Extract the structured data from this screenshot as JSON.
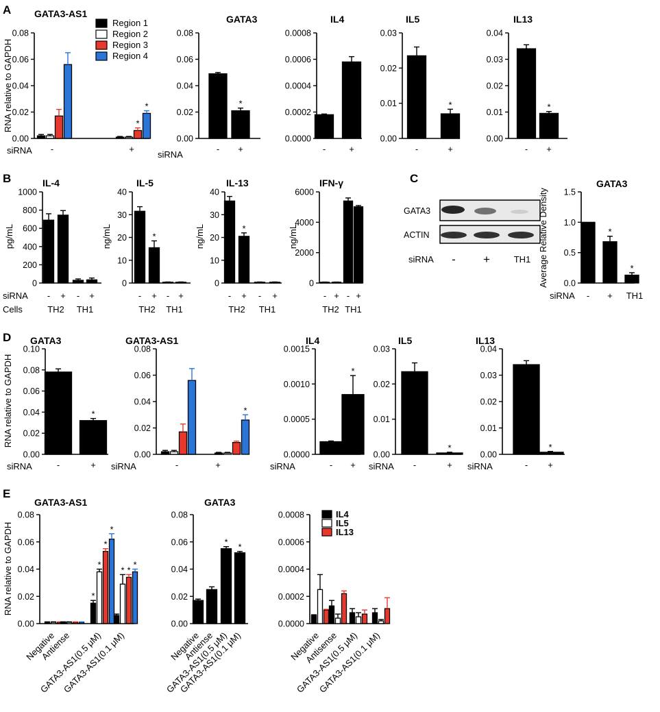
{
  "figure_labels": [
    "A",
    "B",
    "C",
    "D",
    "E"
  ],
  "colors": {
    "black": "#000000",
    "white": "#ffffff",
    "red": "#e8382d",
    "blue": "#2a75d8",
    "gray": "#8a8a8a"
  },
  "chart_data": [
    {
      "id": "A1",
      "panel": "A",
      "type": "bar",
      "title": "GATA3-AS1",
      "ylabel": "RNA relative to GAPDH",
      "ylim": [
        0,
        0.08
      ],
      "yticks": [
        "0.00",
        "0.02",
        "0.04",
        "0.06",
        "0.08"
      ],
      "group_row_label": "siRNA",
      "groups": [
        "-",
        "+"
      ],
      "legend": [
        "Region 1",
        "Region 2",
        "Region 3",
        "Region 4"
      ],
      "series": [
        {
          "name": "Region 1",
          "color": "#000000",
          "values": [
            0.002,
            0.001
          ],
          "errors": [
            0.001,
            0.0005
          ],
          "sig": [
            false,
            false
          ]
        },
        {
          "name": "Region 2",
          "color": "#ffffff",
          "values": [
            0.002,
            0.001
          ],
          "errors": [
            0.001,
            0.0005
          ],
          "sig": [
            false,
            false
          ]
        },
        {
          "name": "Region 3",
          "color": "#e8382d",
          "values": [
            0.017,
            0.006
          ],
          "errors": [
            0.005,
            0.002
          ],
          "sig": [
            false,
            true
          ]
        },
        {
          "name": "Region 4",
          "color": "#2a75d8",
          "values": [
            0.056,
            0.019
          ],
          "errors": [
            0.009,
            0.002
          ],
          "sig": [
            false,
            true
          ]
        }
      ]
    },
    {
      "id": "A2",
      "panel": "A",
      "type": "bar",
      "title": "GATA3",
      "ylim": [
        0,
        0.08
      ],
      "yticks": [
        "0.00",
        "0.02",
        "0.04",
        "0.06",
        "0.08"
      ],
      "group_row_label": "siRNA",
      "categories": [
        "-",
        "+"
      ],
      "values": [
        0.049,
        0.021
      ],
      "errors": [
        0.001,
        0.002
      ],
      "sig": [
        false,
        true
      ]
    },
    {
      "id": "A3",
      "panel": "A",
      "type": "bar",
      "title": "IL4",
      "ylim": [
        0,
        0.0008
      ],
      "yticks": [
        "0.0000",
        "0.0002",
        "0.0004",
        "0.0006",
        "0.0008"
      ],
      "categories": [
        "-",
        "+"
      ],
      "values": [
        0.00018,
        0.00058
      ],
      "errors": [
        5e-06,
        4e-05
      ],
      "sig": [
        false,
        false
      ]
    },
    {
      "id": "A4",
      "panel": "A",
      "type": "bar",
      "title": "IL5",
      "ylim": [
        0,
        0.03
      ],
      "yticks": [
        "0.00",
        "0.01",
        "0.02",
        "0.03"
      ],
      "categories": [
        "-",
        "+"
      ],
      "values": [
        0.0235,
        0.007
      ],
      "errors": [
        0.0025,
        0.0013
      ],
      "sig": [
        false,
        true
      ]
    },
    {
      "id": "A5",
      "panel": "A",
      "type": "bar",
      "title": "IL13",
      "ylim": [
        0,
        0.04
      ],
      "yticks": [
        "0.00",
        "0.01",
        "0.02",
        "0.03",
        "0.04"
      ],
      "categories": [
        "-",
        "+"
      ],
      "values": [
        0.034,
        0.0095
      ],
      "errors": [
        0.0015,
        0.0007
      ],
      "sig": [
        false,
        true
      ]
    },
    {
      "id": "B1",
      "panel": "B",
      "type": "bar",
      "title": "IL-4",
      "ylabel": "pg/mL",
      "ylim": [
        0,
        1000
      ],
      "yticks": [
        "0",
        "200",
        "400",
        "600",
        "800",
        "1000"
      ],
      "group_row_label": "siRNA",
      "categories": [
        "-",
        "+",
        "-",
        "+"
      ],
      "cells_label": "Cells",
      "cells": [
        "TH2",
        "TH1"
      ],
      "values": [
        690,
        745,
        30,
        35
      ],
      "errors": [
        70,
        50,
        15,
        20
      ],
      "sig": [
        false,
        false,
        false,
        false
      ]
    },
    {
      "id": "B2",
      "panel": "B",
      "type": "bar",
      "title": "IL-5",
      "ylabel": "ng/mL",
      "ylim": [
        0,
        40
      ],
      "yticks": [
        "0",
        "10",
        "20",
        "30",
        "40"
      ],
      "categories": [
        "-",
        "+",
        "-",
        "+"
      ],
      "cells": [
        "TH2",
        "TH1"
      ],
      "values": [
        31.5,
        15.5,
        0.3,
        0.3
      ],
      "errors": [
        2,
        3,
        0.1,
        0.1
      ],
      "sig": [
        false,
        true,
        false,
        false
      ]
    },
    {
      "id": "B3",
      "panel": "B",
      "type": "bar",
      "title": "IL-13",
      "ylabel": "ng/mL",
      "ylim": [
        0,
        40
      ],
      "yticks": [
        "0",
        "10",
        "20",
        "30",
        "40"
      ],
      "categories": [
        "-",
        "+",
        "-",
        "+"
      ],
      "cells": [
        "TH2",
        "TH1"
      ],
      "values": [
        36,
        20.5,
        0.3,
        0.3
      ],
      "errors": [
        2,
        1.5,
        0.1,
        0.1
      ],
      "sig": [
        false,
        true,
        false,
        false
      ]
    },
    {
      "id": "B4",
      "panel": "B",
      "type": "bar",
      "title": "IFN-γ",
      "ylabel": "ng/mL",
      "ylim": [
        0,
        6000
      ],
      "yticks": [
        "0",
        "2000",
        "4000",
        "6000"
      ],
      "categories": [
        "-",
        "+",
        "-",
        "+"
      ],
      "cells": [
        "TH2",
        "TH1"
      ],
      "values": [
        30,
        30,
        5400,
        5020
      ],
      "errors": [
        10,
        10,
        200,
        80
      ],
      "sig": [
        false,
        false,
        false,
        false
      ]
    },
    {
      "id": "C_blot",
      "panel": "C",
      "type": "image",
      "title": "Western blot",
      "rows": [
        "GATA3",
        "ACTIN"
      ],
      "group_row_label": "siRNA",
      "lanes": [
        "-",
        "+",
        "TH1"
      ],
      "band_intensity": {
        "GATA3": [
          0.9,
          0.6,
          0.1
        ],
        "ACTIN": [
          0.85,
          0.85,
          0.85
        ]
      }
    },
    {
      "id": "C_bar",
      "panel": "C",
      "type": "bar",
      "title": "GATA3",
      "ylabel": "Average Relative Density",
      "ylim": [
        0,
        1.5
      ],
      "yticks": [
        "0.0",
        "0.5",
        "1.0",
        "1.5"
      ],
      "group_row_label": "siRNA",
      "categories": [
        "-",
        "+",
        "TH1"
      ],
      "values": [
        1.0,
        0.68,
        0.13
      ],
      "errors": [
        0,
        0.09,
        0.04
      ],
      "sig": [
        false,
        true,
        true
      ]
    },
    {
      "id": "D1",
      "panel": "D",
      "type": "bar",
      "title": "GATA3",
      "ylabel": "RNA relative to GAPDH",
      "ylim": [
        0,
        0.1
      ],
      "yticks": [
        "0.00",
        "0.02",
        "0.04",
        "0.06",
        "0.08",
        "0.10"
      ],
      "group_row_label": "siRNA",
      "categories": [
        "-",
        "+"
      ],
      "values": [
        0.078,
        0.032
      ],
      "errors": [
        0.003,
        0.002
      ],
      "sig": [
        false,
        true
      ]
    },
    {
      "id": "D2",
      "panel": "D",
      "type": "bar",
      "title": "GATA3-AS1",
      "ylim": [
        0,
        0.08
      ],
      "yticks": [
        "0.00",
        "0.02",
        "0.04",
        "0.06",
        "0.08"
      ],
      "group_row_label": "siRNA",
      "groups": [
        "-",
        "+"
      ],
      "series": [
        {
          "name": "Region 1",
          "color": "#000000",
          "values": [
            0.002,
            0.001
          ],
          "errors": [
            0.001,
            0.0005
          ],
          "sig": [
            false,
            false
          ]
        },
        {
          "name": "Region 2",
          "color": "#ffffff",
          "values": [
            0.002,
            0.001
          ],
          "errors": [
            0.001,
            0.0005
          ],
          "sig": [
            false,
            false
          ]
        },
        {
          "name": "Region 3",
          "color": "#e8382d",
          "values": [
            0.017,
            0.009
          ],
          "errors": [
            0.006,
            0.001
          ],
          "sig": [
            false,
            false
          ]
        },
        {
          "name": "Region 4",
          "color": "#2a75d8",
          "values": [
            0.056,
            0.026
          ],
          "errors": [
            0.009,
            0.004
          ],
          "sig": [
            false,
            true
          ]
        }
      ]
    },
    {
      "id": "D3",
      "panel": "D",
      "type": "bar",
      "title": "IL4",
      "ylim": [
        0,
        0.0015
      ],
      "yticks": [
        "0.0000",
        "0.0005",
        "0.0010",
        "0.0015"
      ],
      "group_row_label": "siRNA",
      "categories": [
        "-",
        "+"
      ],
      "values": [
        0.00018,
        0.00085
      ],
      "errors": [
        1e-05,
        0.00027
      ],
      "sig": [
        false,
        true
      ]
    },
    {
      "id": "D4",
      "panel": "D",
      "type": "bar",
      "title": "IL5",
      "ylim": [
        0,
        0.03
      ],
      "yticks": [
        "0.00",
        "0.01",
        "0.02",
        "0.03"
      ],
      "group_row_label": "siRNA",
      "categories": [
        "-",
        "+"
      ],
      "values": [
        0.0235,
        0.0004
      ],
      "errors": [
        0.0025,
        0.0002
      ],
      "sig": [
        false,
        true
      ]
    },
    {
      "id": "D5",
      "panel": "D",
      "type": "bar",
      "title": "IL13",
      "ylim": [
        0,
        0.04
      ],
      "yticks": [
        "0.00",
        "0.01",
        "0.02",
        "0.03",
        "0.04"
      ],
      "group_row_label": "siRNA",
      "categories": [
        "-",
        "+"
      ],
      "values": [
        0.034,
        0.0008
      ],
      "errors": [
        0.0015,
        0.0003
      ],
      "sig": [
        false,
        true
      ]
    },
    {
      "id": "E1",
      "panel": "E",
      "type": "bar",
      "title": "GATA3-AS1",
      "ylabel": "RNA relative to GAPDH",
      "ylim": [
        0,
        0.08
      ],
      "yticks": [
        "0.00",
        "0.02",
        "0.04",
        "0.06",
        "0.08"
      ],
      "groups": [
        "Negative",
        "Antiense",
        "GATA3-AS1(0.5 μM)",
        "GATA3-AS1(0.1 μM)"
      ],
      "series": [
        {
          "name": "Region 1",
          "color": "#000000",
          "values": [
            0.001,
            0.001,
            0.015,
            0.006
          ],
          "errors": [
            0.0003,
            0.0003,
            0.002,
            0.001
          ],
          "sig": [
            false,
            false,
            true,
            false
          ]
        },
        {
          "name": "Region 2",
          "color": "#ffffff",
          "values": [
            0.001,
            0.001,
            0.038,
            0.029
          ],
          "errors": [
            0.0003,
            0.0003,
            0.002,
            0.007
          ],
          "sig": [
            false,
            false,
            true,
            true
          ]
        },
        {
          "name": "Region 3",
          "color": "#e8382d",
          "values": [
            0.001,
            0.001,
            0.053,
            0.034
          ],
          "errors": [
            0.0003,
            0.0003,
            0.002,
            0.002
          ],
          "sig": [
            false,
            false,
            true,
            true
          ]
        },
        {
          "name": "Region 4",
          "color": "#2a75d8",
          "values": [
            0.001,
            0.001,
            0.062,
            0.038
          ],
          "errors": [
            0.0003,
            0.0003,
            0.004,
            0.002
          ],
          "sig": [
            false,
            false,
            true,
            true
          ]
        }
      ]
    },
    {
      "id": "E2",
      "panel": "E",
      "type": "bar",
      "title": "GATA3",
      "ylim": [
        0,
        0.08
      ],
      "yticks": [
        "0.00",
        "0.02",
        "0.04",
        "0.06",
        "0.08"
      ],
      "categories": [
        "Negative",
        "Antiense",
        "GATA3-AS1(0.5 μM)",
        "GATA3-AS1(0.1 μM)"
      ],
      "values": [
        0.017,
        0.025,
        0.055,
        0.052
      ],
      "errors": [
        0.001,
        0.002,
        0.0015,
        0.001
      ],
      "sig": [
        false,
        false,
        true,
        true
      ]
    },
    {
      "id": "E3",
      "panel": "E",
      "type": "bar",
      "title": "",
      "ylim": [
        0,
        0.0008
      ],
      "yticks": [
        "0.0000",
        "0.0002",
        "0.0004",
        "0.0006",
        "0.0008"
      ],
      "groups": [
        "Negative",
        "Antisense",
        "GATA3-AS1(0.5 μM)",
        "GATA3-AS1(0.1 μM)"
      ],
      "legend": [
        "IL4",
        "IL5",
        "IL13"
      ],
      "series": [
        {
          "name": "IL4",
          "color": "#000000",
          "values": [
            6e-05,
            0.00013,
            8e-05,
            8e-05
          ],
          "errors": [
            5e-06,
            4e-05,
            3e-05,
            3e-05
          ],
          "sig": [
            false,
            false,
            false,
            false
          ]
        },
        {
          "name": "IL5",
          "color": "#ffffff",
          "values": [
            0.00025,
            4e-05,
            5e-05,
            2e-05
          ],
          "errors": [
            0.00011,
            3e-05,
            3e-05,
            1e-05
          ],
          "sig": [
            false,
            false,
            false,
            false
          ]
        },
        {
          "name": "IL13",
          "color": "#e8382d",
          "values": [
            0.0001,
            0.00022,
            7e-05,
            0.00011
          ],
          "errors": [
            5e-06,
            2e-05,
            3e-05,
            8e-05
          ],
          "sig": [
            false,
            false,
            false,
            false
          ]
        }
      ]
    }
  ]
}
